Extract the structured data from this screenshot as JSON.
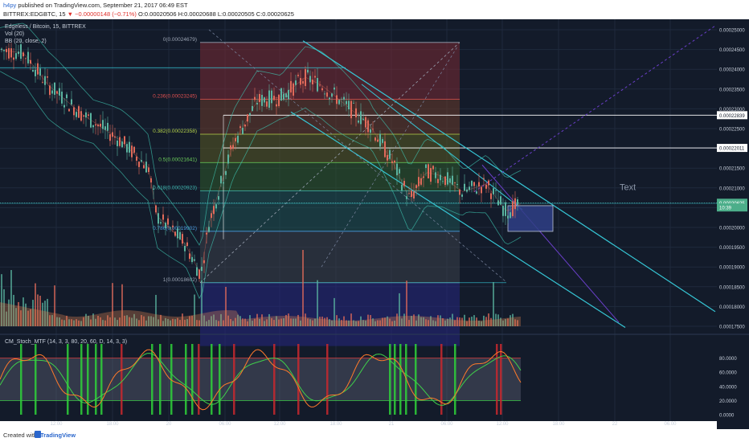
{
  "header": {
    "user": "h4py",
    "published_text": "published on TradingView.com, September 21, 2017 06:49 EST",
    "symbol": "BITTREX:EDGBTC, 15",
    "down_arrow": "▼",
    "change": "−0.00000148 (−0.71%)",
    "ohlc": "O:0.00020506 H:0.00020688 L:0.00020505 C:0.00020625"
  },
  "legend": {
    "title": "Edgeless / Bitcoin, 15, BITTREX",
    "vol": "Vol (20)",
    "bb": "BB (20, close, 2)",
    "stoch": "CM_Stoch_MTF (14, 3, 3, 80, 20, 60, D, 14, 3, 3)"
  },
  "fib_levels": [
    {
      "label": "0(0.00024679)",
      "value": 0.00024679,
      "color": "#9aa3b2"
    },
    {
      "label": "0.236(0.00023245)",
      "value": 0.00023245,
      "color": "#e05050"
    },
    {
      "label": "0.382(0.00022358)",
      "value": 0.00022358,
      "color": "#b6d34a"
    },
    {
      "label": "0.5(0.00021641)",
      "value": 0.00021641,
      "color": "#6dcf5b"
    },
    {
      "label": "0.618(0.00020923)",
      "value": 0.00020923,
      "color": "#3fb8b0"
    },
    {
      "label": "0.786(0.00019902)",
      "value": 0.00019902,
      "color": "#4a9be0"
    },
    {
      "label": "1(0.00018602)",
      "value": 0.00018602,
      "color": "#9aa3b2"
    }
  ],
  "price_axis": {
    "ticks": [
      "0.00025000",
      "0.00024500",
      "0.00024000",
      "0.00023500",
      "0.00023000",
      "0.00022500",
      "0.00022000",
      "0.00021500",
      "0.00021000",
      "0.00020500",
      "0.00020000",
      "0.00019500",
      "0.00019000",
      "0.00018500",
      "0.00018000",
      "0.00017500"
    ],
    "tick_values": [
      0.00025,
      0.000245,
      0.00024,
      0.000235,
      0.00023,
      0.000225,
      0.00022,
      0.000215,
      0.00021,
      0.000205,
      0.0002,
      0.000195,
      0.00019,
      0.000185,
      0.00018,
      0.000175
    ],
    "boxed_labels": [
      {
        "text": "0.00022839",
        "value": 0.00022839,
        "bg": "#ffffff",
        "fg": "#131b2a"
      },
      {
        "text": "0.00022011",
        "value": 0.00022011,
        "bg": "#ffffff",
        "fg": "#131b2a"
      },
      {
        "text": "0.00020625",
        "value": 0.00020625,
        "bg": "#4cae8a",
        "fg": "#ffffff"
      },
      {
        "text": "10:39",
        "value": 0.00020505,
        "bg": "#4cae8a",
        "fg": "#ffffff"
      }
    ]
  },
  "stoch_axis": [
    "80.0000",
    "60.0000",
    "40.0000",
    "20.0000",
    "0.0000"
  ],
  "time_axis": [
    "12:00",
    "18:00",
    "20",
    "06:00",
    "12:00",
    "18:00",
    "21",
    "06:00",
    "12:00",
    "18:00",
    "22",
    "06:00"
  ],
  "annotation_text": "Text",
  "footer": {
    "created": "Created with",
    "brand": "TradingView"
  },
  "colors": {
    "background": "#131b2a",
    "up": "#5ab4a0",
    "down": "#e06a5a",
    "channel": "#36c7d6",
    "bands": "#3ec5b0",
    "stoch_k": "#ff7a2a",
    "stoch_d": "#3fcf4a"
  }
}
